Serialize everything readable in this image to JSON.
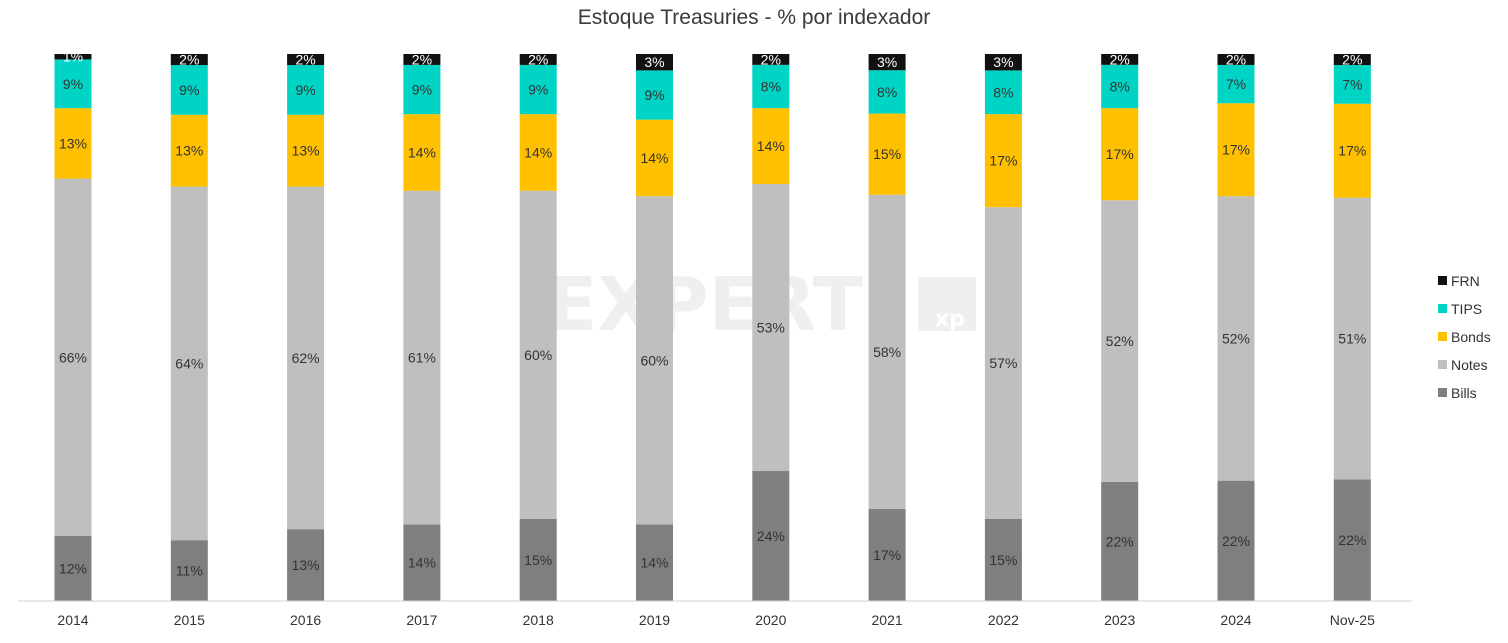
{
  "chart_data": {
    "type": "bar",
    "stacked": true,
    "title": "Estoque Treasuries - % por indexador",
    "xlabel": "",
    "ylabel": "",
    "ylim": [
      0,
      100
    ],
    "grid": false,
    "legend_position": "right",
    "categories": [
      "2014",
      "2015",
      "2016",
      "2017",
      "2018",
      "2019",
      "2020",
      "2021",
      "2022",
      "2023",
      "2024",
      "Nov-25"
    ],
    "series": [
      {
        "name": "Bills",
        "color": "#7f7f7f",
        "label_color": "#333333",
        "values": [
          12,
          11,
          13,
          14,
          15,
          14,
          24,
          17,
          15,
          22,
          22,
          22
        ]
      },
      {
        "name": "Notes",
        "color": "#bfbfbf",
        "label_color": "#333333",
        "values": [
          66,
          64,
          62,
          61,
          60,
          60,
          53,
          58,
          57,
          52,
          52,
          51
        ]
      },
      {
        "name": "Bonds",
        "color": "#ffc000",
        "label_color": "#333333",
        "values": [
          13,
          13,
          13,
          14,
          14,
          14,
          14,
          15,
          17,
          17,
          17,
          17
        ]
      },
      {
        "name": "TIPS",
        "color": "#00d4c4",
        "label_color": "#333333",
        "values": [
          9,
          9,
          9,
          9,
          9,
          9,
          8,
          8,
          8,
          8,
          7,
          7
        ]
      },
      {
        "name": "FRN",
        "color": "#111111",
        "label_color": "#ffffff",
        "values": [
          1,
          2,
          2,
          2,
          2,
          3,
          2,
          3,
          3,
          2,
          2,
          2
        ]
      }
    ],
    "legend_order": [
      "FRN",
      "TIPS",
      "Bonds",
      "Notes",
      "Bills"
    ]
  },
  "watermark": {
    "brand": "EXPERT",
    "sub": "xp"
  }
}
